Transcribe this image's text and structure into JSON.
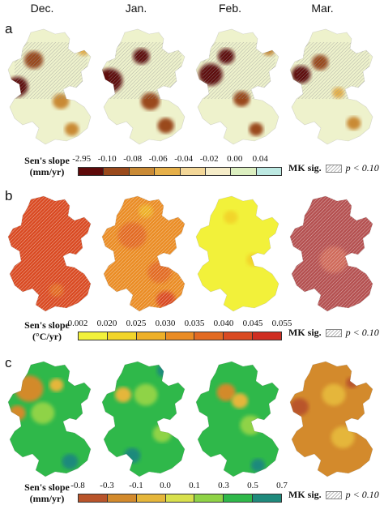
{
  "months": [
    "Dec.",
    "Jan.",
    "Feb.",
    "Mar."
  ],
  "panels": [
    {
      "letter": "a",
      "legend_title_line1": "Sen's slope",
      "legend_title_line2": "(mm/yr)",
      "ticks": [
        "-2.95",
        "-0.10",
        "-0.08",
        "-0.06",
        "-0.04",
        "-0.02",
        "0.00",
        "0.04"
      ],
      "colors": [
        "#5e0a0a",
        "#9a4a1c",
        "#c98a35",
        "#e6b04a",
        "#f3d798",
        "#f5ecc8",
        "#dcefc0",
        "#bde9e2"
      ],
      "mk_label": "MK sig.",
      "p_label": "p < 0.10"
    },
    {
      "letter": "b",
      "legend_title_line1": "Sen's slope",
      "legend_title_line2": "(°C/yr)",
      "ticks": [
        "0.002",
        "0.020",
        "0.025",
        "0.030",
        "0.035",
        "0.040",
        "0.045",
        "0.055"
      ],
      "colors": [
        "#f2f13a",
        "#f2d52a",
        "#eeb028",
        "#ea8c24",
        "#e26a22",
        "#d94a22",
        "#cf2e22"
      ],
      "mk_label": "MK sig.",
      "p_label": "p < 0.10"
    },
    {
      "letter": "c",
      "legend_title_line1": "Sen's slope",
      "legend_title_line2": "(mm/yr)",
      "ticks": [
        "-0.8",
        "-0.3",
        "-0.1",
        "0.0",
        "0.1",
        "0.3",
        "0.5",
        "0.7"
      ],
      "colors": [
        "#b9542a",
        "#d38a2c",
        "#e5b63a",
        "#d8e04c",
        "#8fd346",
        "#2fb84a",
        "#1f8a7c"
      ],
      "mk_label": "MK sig.",
      "p_label": "p < 0.10"
    }
  ],
  "maps": [
    [
      {
        "base": "#eef2cc",
        "hatch": true,
        "blobs": [
          [
            "#5e0a0a",
            0.12,
            0.5,
            0.09
          ],
          [
            "#9a4a1c",
            0.3,
            0.28,
            0.08
          ],
          [
            "#c98a35",
            0.6,
            0.62,
            0.07
          ],
          [
            "#c98a35",
            0.72,
            0.85,
            0.06
          ],
          [
            "#e6b04a",
            0.85,
            0.2,
            0.05
          ]
        ]
      },
      {
        "base": "#eef2cc",
        "hatch": true,
        "blobs": [
          [
            "#5e0a0a",
            0.1,
            0.45,
            0.11
          ],
          [
            "#5e0a0a",
            0.45,
            0.25,
            0.07
          ],
          [
            "#9a4a1c",
            0.55,
            0.62,
            0.08
          ],
          [
            "#9a4a1c",
            0.72,
            0.82,
            0.07
          ],
          [
            "#c98a35",
            0.78,
            0.1,
            0.05
          ]
        ]
      },
      {
        "base": "#eef2cc",
        "hatch": true,
        "blobs": [
          [
            "#5e0a0a",
            0.18,
            0.4,
            0.1
          ],
          [
            "#5e0a0a",
            0.35,
            0.25,
            0.07
          ],
          [
            "#9a4a1c",
            0.52,
            0.6,
            0.07
          ],
          [
            "#9a4a1c",
            0.68,
            0.85,
            0.06
          ],
          [
            "#c98a35",
            0.82,
            0.2,
            0.05
          ]
        ]
      },
      {
        "base": "#eef2cc",
        "hatch": true,
        "blobs": [
          [
            "#5e0a0a",
            0.14,
            0.4,
            0.08
          ],
          [
            "#9a4a1c",
            0.35,
            0.3,
            0.07
          ],
          [
            "#c98a35",
            0.72,
            0.8,
            0.06
          ],
          [
            "#e6b04a",
            0.55,
            0.55,
            0.05
          ]
        ]
      }
    ],
    [
      {
        "base": "#d94a22",
        "hatch": true,
        "blobs": [
          [
            "#e26a22",
            0.55,
            0.8,
            0.06
          ]
        ]
      },
      {
        "base": "#ea8c24",
        "hatch": true,
        "blobs": [
          [
            "#e26a22",
            0.35,
            0.35,
            0.12
          ],
          [
            "#e26a22",
            0.65,
            0.65,
            0.1
          ],
          [
            "#d94a22",
            0.72,
            0.88,
            0.08
          ],
          [
            "#eeb028",
            0.5,
            0.15,
            0.06
          ]
        ]
      },
      {
        "base": "#f2f13a",
        "hatch": false,
        "blobs": [
          [
            "#f2d52a",
            0.4,
            0.2,
            0.06
          ],
          [
            "#f2d52a",
            0.65,
            0.55,
            0.06
          ]
        ]
      },
      {
        "base": "#b45050",
        "hatch": true,
        "blobs": [
          [
            "#cf6a5a",
            0.5,
            0.55,
            0.12
          ]
        ]
      }
    ],
    [
      {
        "base": "#2fb84a",
        "hatch": false,
        "blobs": [
          [
            "#d38a2c",
            0.25,
            0.25,
            0.12
          ],
          [
            "#d38a2c",
            0.12,
            0.45,
            0.07
          ],
          [
            "#8fd346",
            0.4,
            0.45,
            0.1
          ],
          [
            "#1f8a7c",
            0.7,
            0.85,
            0.07
          ],
          [
            "#e5b63a",
            0.55,
            0.22,
            0.06
          ]
        ]
      },
      {
        "base": "#2fb84a",
        "hatch": false,
        "blobs": [
          [
            "#1f8a7c",
            0.7,
            0.1,
            0.06
          ],
          [
            "#8fd346",
            0.5,
            0.3,
            0.1
          ],
          [
            "#1f8a7c",
            0.35,
            0.8,
            0.07
          ],
          [
            "#e5b63a",
            0.25,
            0.3,
            0.07
          ],
          [
            "#8fd346",
            0.68,
            0.62,
            0.08
          ]
        ]
      },
      {
        "base": "#2fb84a",
        "hatch": false,
        "blobs": [
          [
            "#d38a2c",
            0.35,
            0.28,
            0.08
          ],
          [
            "#e5b63a",
            0.5,
            0.35,
            0.07
          ],
          [
            "#8fd346",
            0.62,
            0.55,
            0.09
          ],
          [
            "#1f8a7c",
            0.7,
            0.88,
            0.06
          ]
        ]
      },
      {
        "base": "#d38a2c",
        "hatch": false,
        "blobs": [
          [
            "#b9542a",
            0.12,
            0.4,
            0.08
          ],
          [
            "#e5b63a",
            0.5,
            0.3,
            0.1
          ],
          [
            "#e5b63a",
            0.6,
            0.65,
            0.1
          ],
          [
            "#b9542a",
            0.7,
            0.2,
            0.05
          ]
        ]
      }
    ]
  ]
}
